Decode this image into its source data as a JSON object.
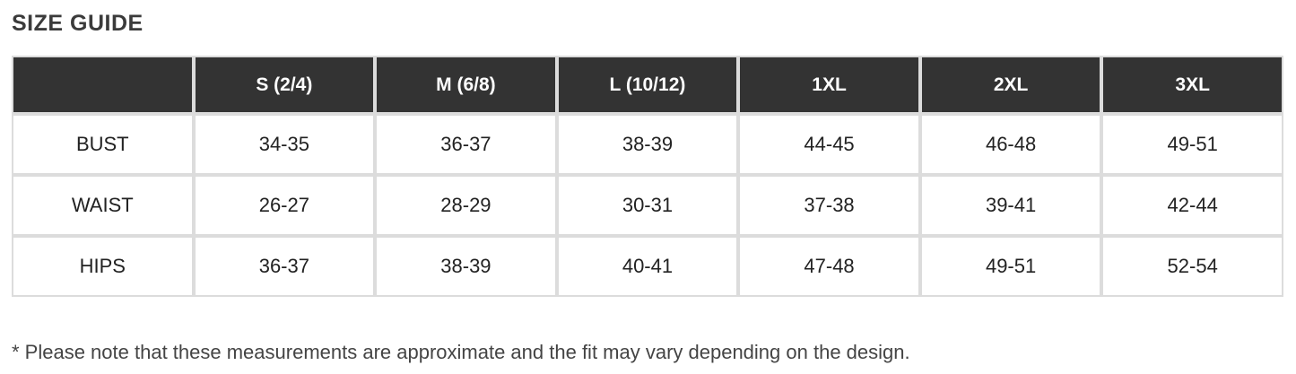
{
  "page": {
    "title": "SIZE GUIDE",
    "footnote": "* Please note that these measurements are approximate and the fit may vary depending on the design."
  },
  "table": {
    "headers": [
      "",
      "S (2/4)",
      "M (6/8)",
      "L (10/12)",
      "1XL",
      "2XL",
      "3XL"
    ],
    "rows": [
      {
        "label": "BUST",
        "values": [
          "34-35",
          "36-37",
          "38-39",
          "44-45",
          "46-48",
          "49-51"
        ]
      },
      {
        "label": "WAIST",
        "values": [
          "26-27",
          "28-29",
          "30-31",
          "37-38",
          "39-41",
          "42-44"
        ]
      },
      {
        "label": "HIPS",
        "values": [
          "36-37",
          "38-39",
          "40-41",
          "47-48",
          "49-51",
          "52-54"
        ]
      }
    ]
  },
  "colors": {
    "header_background": "#333333",
    "header_text": "#ffffff",
    "border": "#dcdcdc",
    "body_text": "#222222",
    "title_text": "#3b3b3b"
  }
}
